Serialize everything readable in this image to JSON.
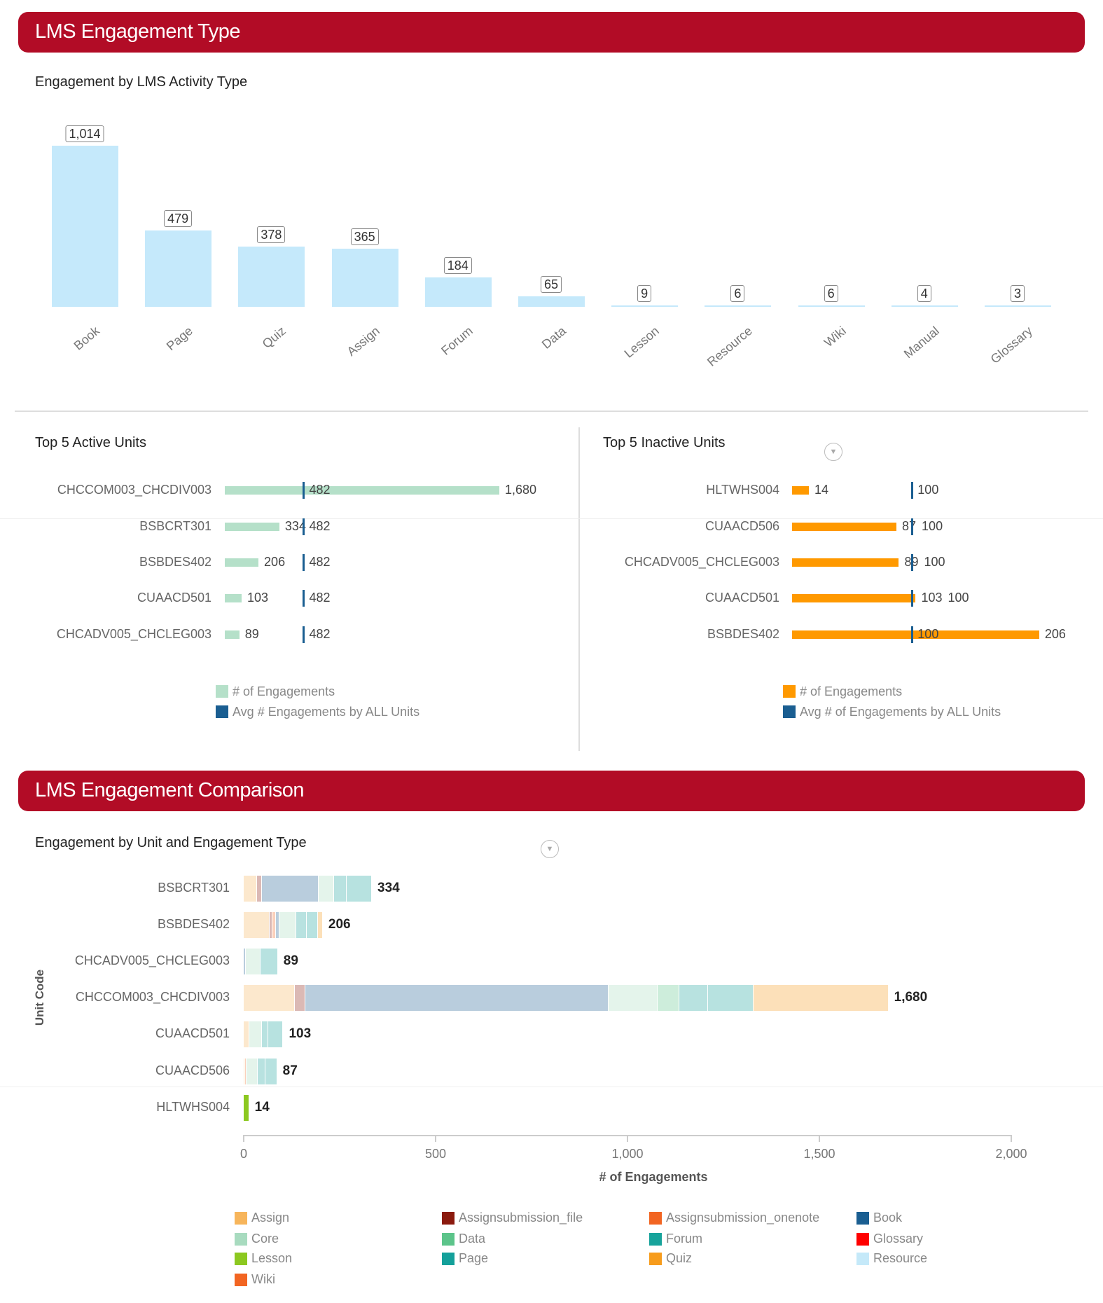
{
  "section1": {
    "title": "LMS Engagement Type"
  },
  "activity_chart": {
    "title": "Engagement by LMS Activity Type",
    "bar_color": "#c5e9fb",
    "categories": [
      "Book",
      "Page",
      "Quiz",
      "Assign",
      "Forum",
      "Data",
      "Lesson",
      "Resource",
      "Wiki",
      "Manual",
      "Glossary"
    ],
    "values": [
      1014,
      479,
      378,
      365,
      184,
      65,
      9,
      6,
      6,
      4,
      3
    ],
    "labels": [
      "1,014",
      "479",
      "378",
      "365",
      "184",
      "65",
      "9",
      "6",
      "6",
      "4",
      "3"
    ]
  },
  "active_units": {
    "title": "Top 5 Active Units",
    "bar_color": "#b5e0c9",
    "avg_color": "#1a5e91",
    "average": 482,
    "average_label": "482",
    "units": [
      "CHCCOM003_CHCDIV003",
      "BSBCRT301",
      "BSBDES402",
      "CUAACD501",
      "CHCADV005_CHCLEG003"
    ],
    "values": [
      1680,
      334,
      206,
      103,
      89
    ],
    "labels": [
      "1,680",
      "334",
      "206",
      "103",
      "89"
    ],
    "legend": [
      "# of Engagements",
      "Avg # Engagements by ALL Units"
    ]
  },
  "inactive_units": {
    "title": "Top 5 Inactive Units",
    "bar_color": "#ff9900",
    "avg_color": "#1a5e91",
    "average": 100,
    "average_label": "100",
    "units": [
      "HLTWHS004",
      "CUAACD506",
      "CHCADV005_CHCLEG003",
      "CUAACD501",
      "BSBDES402"
    ],
    "values": [
      14,
      87,
      89,
      103,
      206
    ],
    "labels": [
      "14",
      "87",
      "89",
      "103",
      "206"
    ],
    "legend": [
      "# of Engagements",
      "Avg # of Engagements by ALL Units"
    ],
    "menu_icon": "chevron-down-circle-icon"
  },
  "section2": {
    "title": "LMS Engagement Comparison"
  },
  "chart_data": {
    "type": "bar",
    "orientation": "horizontal-stacked",
    "title": "Engagement by Unit and Engagement Type",
    "xlabel": "# of Engagements",
    "ylabel": "Unit Code",
    "xlim": [
      0,
      2000
    ],
    "xticks": [
      "0",
      "500",
      "1,000",
      "1,500",
      "2,000"
    ],
    "categories": [
      "BSBCRT301",
      "BSBDES402",
      "CHCADV005_CHCLEG003",
      "CHCCOM003_CHCDIV003",
      "CUAACD501",
      "CUAACD506",
      "HLTWHS004"
    ],
    "totals": [
      "334",
      "206",
      "89",
      "1,680",
      "103",
      "87",
      "14"
    ],
    "highlighted": "HLTWHS004",
    "series": [
      {
        "name": "Assign",
        "color": "#f7b55b",
        "values": [
          34,
          67,
          0,
          134,
          14,
          4,
          0
        ]
      },
      {
        "name": "Assignsubmission_file",
        "color": "#8b1a0e",
        "values": [
          13,
          8,
          0,
          26,
          0,
          0,
          0
        ]
      },
      {
        "name": "Assignsubmission_onenote",
        "color": "#f26522",
        "values": [
          0,
          9,
          0,
          0,
          0,
          4,
          0
        ]
      },
      {
        "name": "Book",
        "color": "#1a5e91",
        "values": [
          149,
          9,
          6,
          791,
          0,
          0,
          0
        ]
      },
      {
        "name": "Core",
        "color": "#a8dbbf",
        "values": [
          40,
          44,
          37,
          128,
          33,
          29,
          0
        ]
      },
      {
        "name": "Data",
        "color": "#5cc48a",
        "values": [
          0,
          0,
          0,
          56,
          0,
          0,
          0
        ]
      },
      {
        "name": "Forum",
        "color": "#17a39b",
        "values": [
          33,
          28,
          0,
          74,
          16,
          19,
          0
        ]
      },
      {
        "name": "Glossary",
        "color": "#ff0000",
        "values": [
          0,
          0,
          0,
          0,
          0,
          0,
          0
        ]
      },
      {
        "name": "Lesson",
        "color": "#8cc820",
        "values": [
          0,
          0,
          0,
          0,
          0,
          0,
          14
        ]
      },
      {
        "name": "Page",
        "color": "#14a09a",
        "values": [
          65,
          29,
          46,
          120,
          40,
          31,
          0
        ]
      },
      {
        "name": "Quiz",
        "color": "#f79c1c",
        "values": [
          0,
          12,
          0,
          351,
          0,
          0,
          0
        ]
      },
      {
        "name": "Resource",
        "color": "#c5e9f9",
        "values": [
          0,
          0,
          0,
          0,
          0,
          0,
          0
        ]
      },
      {
        "name": "Wiki",
        "color": "#f26522",
        "values": [
          0,
          0,
          0,
          0,
          0,
          0,
          0
        ]
      }
    ],
    "menu_icon": "chevron-down-circle-icon"
  }
}
